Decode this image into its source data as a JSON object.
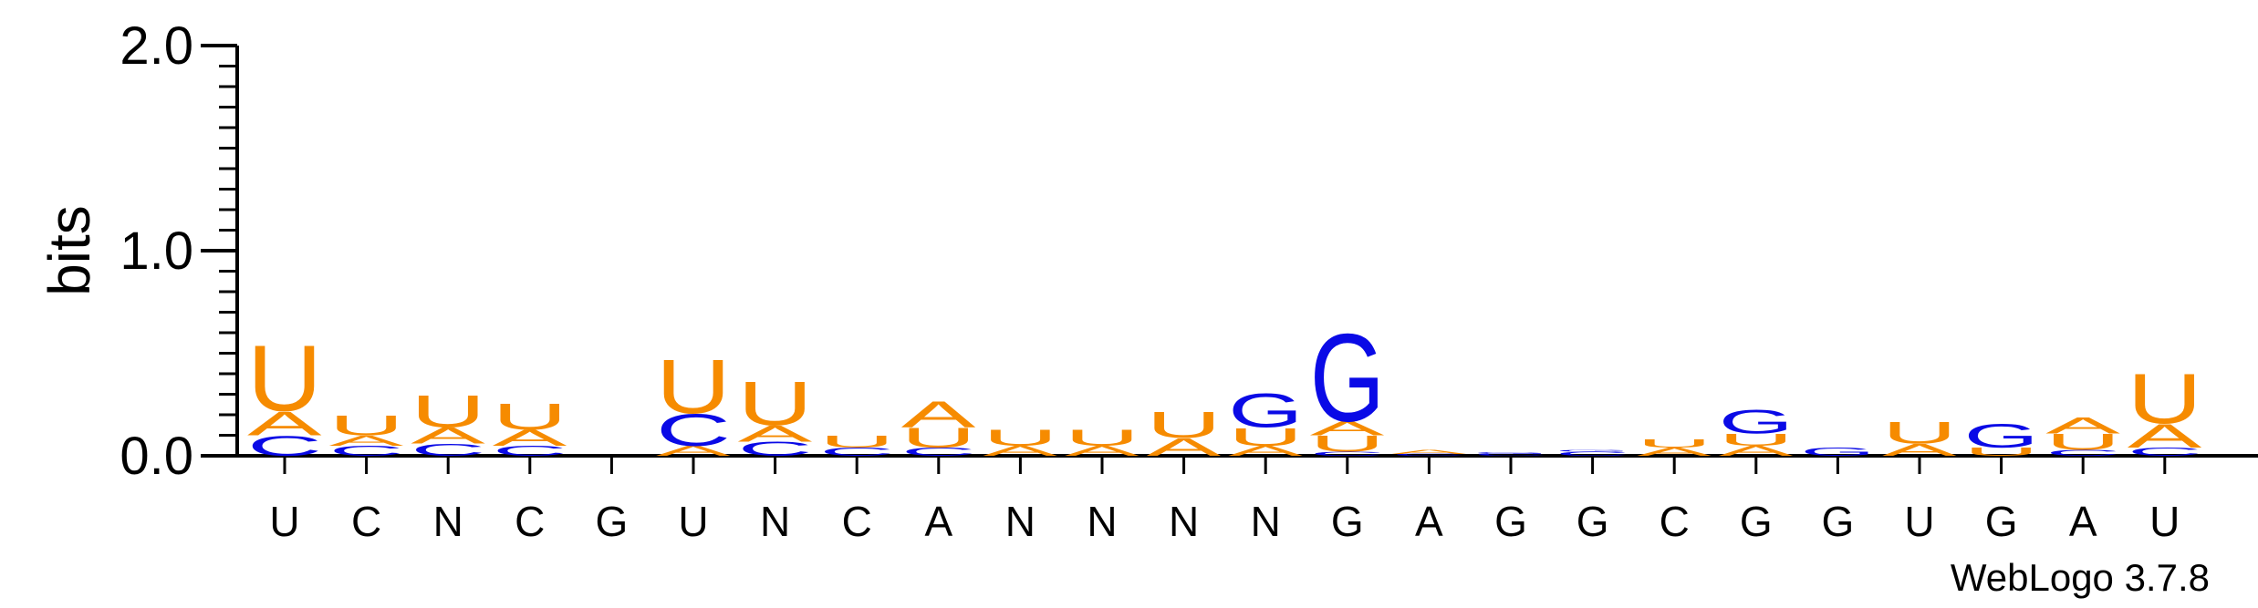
{
  "chart_data": {
    "type": "sequence-logo",
    "ylabel": "bits",
    "ylim": [
      0,
      2.0
    ],
    "yticks": [
      "0.0",
      "1.0",
      "2.0"
    ],
    "credit": "WebLogo 3.7.8",
    "colors": {
      "A": "#f68b00",
      "U": "#f68b00",
      "C": "#0a0ae6",
      "G": "#0a0ae6"
    },
    "positions": [
      {
        "label": "U",
        "stack": [
          {
            "b": "C",
            "h": 0.1
          },
          {
            "b": "A",
            "h": 0.12
          },
          {
            "b": "U",
            "h": 0.33
          }
        ]
      },
      {
        "label": "C",
        "stack": [
          {
            "b": "C",
            "h": 0.05
          },
          {
            "b": "A",
            "h": 0.05
          },
          {
            "b": "U",
            "h": 0.1
          }
        ]
      },
      {
        "label": "N",
        "stack": [
          {
            "b": "C",
            "h": 0.06
          },
          {
            "b": "A",
            "h": 0.08
          },
          {
            "b": "U",
            "h": 0.16
          }
        ]
      },
      {
        "label": "C",
        "stack": [
          {
            "b": "C",
            "h": 0.05
          },
          {
            "b": "A",
            "h": 0.08
          },
          {
            "b": "U",
            "h": 0.13
          }
        ]
      },
      {
        "label": "G",
        "stack": []
      },
      {
        "label": "U",
        "stack": [
          {
            "b": "A",
            "h": 0.05
          },
          {
            "b": "C",
            "h": 0.16
          },
          {
            "b": "U",
            "h": 0.27
          }
        ]
      },
      {
        "label": "N",
        "stack": [
          {
            "b": "C",
            "h": 0.07
          },
          {
            "b": "A",
            "h": 0.08
          },
          {
            "b": "U",
            "h": 0.22
          }
        ]
      },
      {
        "label": "C",
        "stack": [
          {
            "b": "C",
            "h": 0.04
          },
          {
            "b": "U",
            "h": 0.06
          }
        ]
      },
      {
        "label": "A",
        "stack": [
          {
            "b": "C",
            "h": 0.04
          },
          {
            "b": "U",
            "h": 0.1
          },
          {
            "b": "A",
            "h": 0.13
          }
        ]
      },
      {
        "label": "N",
        "stack": [
          {
            "b": "A",
            "h": 0.05
          },
          {
            "b": "U",
            "h": 0.08
          }
        ]
      },
      {
        "label": "N",
        "stack": [
          {
            "b": "A",
            "h": 0.05
          },
          {
            "b": "U",
            "h": 0.08
          }
        ]
      },
      {
        "label": "N",
        "stack": [
          {
            "b": "A",
            "h": 0.09
          },
          {
            "b": "U",
            "h": 0.13
          }
        ]
      },
      {
        "label": "N",
        "stack": [
          {
            "b": "A",
            "h": 0.05
          },
          {
            "b": "U",
            "h": 0.09
          },
          {
            "b": "G",
            "h": 0.17
          }
        ]
      },
      {
        "label": "G",
        "stack": [
          {
            "b": "C",
            "h": 0.02
          },
          {
            "b": "U",
            "h": 0.08
          },
          {
            "b": "A",
            "h": 0.07
          },
          {
            "b": "G",
            "h": 0.44
          }
        ]
      },
      {
        "label": "A",
        "stack": [
          {
            "b": "C",
            "h": 0.01
          },
          {
            "b": "A",
            "h": 0.02
          }
        ]
      },
      {
        "label": "G",
        "stack": [
          {
            "b": "C",
            "h": 0.01
          },
          {
            "b": "G",
            "h": 0.01
          }
        ]
      },
      {
        "label": "G",
        "stack": [
          {
            "b": "C",
            "h": 0.02
          },
          {
            "b": "G",
            "h": 0.01
          }
        ]
      },
      {
        "label": "C",
        "stack": [
          {
            "b": "A",
            "h": 0.04
          },
          {
            "b": "U",
            "h": 0.04
          }
        ]
      },
      {
        "label": "G",
        "stack": [
          {
            "b": "A",
            "h": 0.05
          },
          {
            "b": "U",
            "h": 0.06
          },
          {
            "b": "G",
            "h": 0.12
          }
        ]
      },
      {
        "label": "G",
        "stack": [
          {
            "b": "G",
            "h": 0.04
          }
        ]
      },
      {
        "label": "U",
        "stack": [
          {
            "b": "A",
            "h": 0.06
          },
          {
            "b": "U",
            "h": 0.11
          }
        ]
      },
      {
        "label": "G",
        "stack": [
          {
            "b": "U",
            "h": 0.04
          },
          {
            "b": "G",
            "h": 0.12
          }
        ]
      },
      {
        "label": "A",
        "stack": [
          {
            "b": "C",
            "h": 0.03
          },
          {
            "b": "U",
            "h": 0.08
          },
          {
            "b": "A",
            "h": 0.08
          }
        ]
      },
      {
        "label": "U",
        "stack": [
          {
            "b": "C",
            "h": 0.04
          },
          {
            "b": "A",
            "h": 0.12
          },
          {
            "b": "U",
            "h": 0.25
          }
        ]
      }
    ]
  }
}
